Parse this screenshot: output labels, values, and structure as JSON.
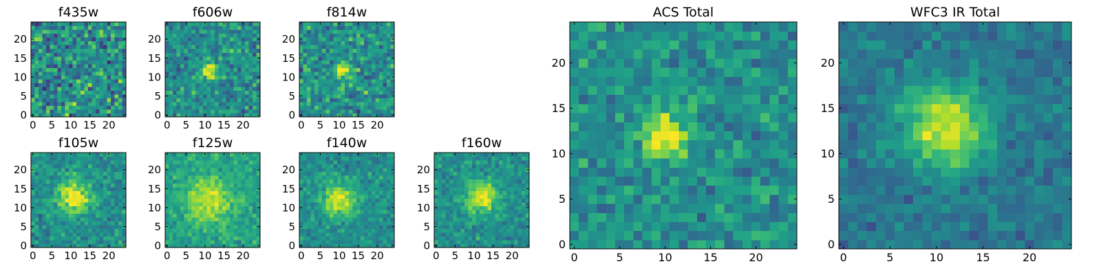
{
  "chart_data": [
    {
      "type": "heatmap",
      "title": "f435w",
      "xticks": [
        "0",
        "5",
        "10",
        "15",
        "20"
      ],
      "yticks": [
        "0",
        "5",
        "10",
        "15",
        "20"
      ],
      "xlim": [
        -0.5,
        24.5
      ],
      "ylim": [
        -0.5,
        24.5
      ],
      "grid": false,
      "blob": {
        "x": 12,
        "y": 12,
        "sigma": 3.0,
        "amp": 0.0
      },
      "noise": 0.46,
      "seed": 3
    },
    {
      "type": "heatmap",
      "title": "f606w",
      "xticks": [
        "0",
        "5",
        "10",
        "15",
        "20"
      ],
      "yticks": [
        "0",
        "5",
        "10",
        "15",
        "20"
      ],
      "xlim": [
        -0.5,
        24.5
      ],
      "ylim": [
        -0.5,
        24.5
      ],
      "grid": false,
      "blob": {
        "x": 11,
        "y": 12,
        "sigma": 1.6,
        "amp": 0.45
      },
      "noise": 0.34,
      "seed": 7
    },
    {
      "type": "heatmap",
      "title": "f814w",
      "xticks": [
        "0",
        "5",
        "10",
        "15",
        "20"
      ],
      "yticks": [
        "0",
        "5",
        "10",
        "15",
        "20"
      ],
      "xlim": [
        -0.5,
        24.5
      ],
      "ylim": [
        -0.5,
        24.5
      ],
      "grid": false,
      "blob": {
        "x": 11,
        "y": 12,
        "sigma": 1.6,
        "amp": 0.45
      },
      "noise": 0.36,
      "seed": 11
    },
    {
      "type": "heatmap",
      "title": "f105w",
      "xticks": [
        "0",
        "5",
        "10",
        "15",
        "20"
      ],
      "yticks": [
        "0",
        "5",
        "10",
        "15",
        "20"
      ],
      "xlim": [
        -0.5,
        24.5
      ],
      "ylim": [
        -0.5,
        24.5
      ],
      "grid": false,
      "blob": {
        "x": 11,
        "y": 13,
        "sigma": 3.0,
        "amp": 0.5
      },
      "noise": 0.24,
      "seed": 13
    },
    {
      "type": "heatmap",
      "title": "f125w",
      "xticks": [
        "0",
        "5",
        "10",
        "15",
        "20"
      ],
      "yticks": [
        "0",
        "5",
        "10",
        "15",
        "20"
      ],
      "xlim": [
        -0.5,
        24.5
      ],
      "ylim": [
        -0.5,
        24.5
      ],
      "grid": false,
      "blob": {
        "x": 11,
        "y": 12,
        "sigma": 4.0,
        "amp": 0.35
      },
      "noise": 0.2,
      "base": 0.58,
      "seed": 17
    },
    {
      "type": "heatmap",
      "title": "f140w",
      "xticks": [
        "0",
        "5",
        "10",
        "15",
        "20"
      ],
      "yticks": [
        "0",
        "5",
        "10",
        "15",
        "20"
      ],
      "xlim": [
        -0.5,
        24.5
      ],
      "ylim": [
        -0.5,
        24.5
      ],
      "grid": false,
      "blob": {
        "x": 10,
        "y": 12,
        "sigma": 3.0,
        "amp": 0.45
      },
      "noise": 0.22,
      "seed": 19
    },
    {
      "type": "heatmap",
      "title": "f160w",
      "xticks": [
        "0",
        "5",
        "10",
        "15",
        "20"
      ],
      "yticks": [
        "0",
        "5",
        "10",
        "15",
        "20"
      ],
      "xlim": [
        -0.5,
        24.5
      ],
      "ylim": [
        -0.5,
        24.5
      ],
      "grid": false,
      "blob": {
        "x": 12,
        "y": 13,
        "sigma": 3.0,
        "amp": 0.45
      },
      "noise": 0.22,
      "seed": 23
    },
    {
      "type": "heatmap",
      "title": "ACS Total",
      "xticks": [
        "0",
        "5",
        "10",
        "15",
        "20"
      ],
      "yticks": [
        "0",
        "5",
        "10",
        "15",
        "20"
      ],
      "xlim": [
        -0.5,
        24.5
      ],
      "ylim": [
        -0.5,
        24.5
      ],
      "grid": false,
      "blob": {
        "x": 10,
        "y": 12,
        "sigma": 1.8,
        "amp": 0.5
      },
      "noise": 0.26,
      "seed": 29
    },
    {
      "type": "heatmap",
      "title": "WFC3 IR Total",
      "xticks": [
        "0",
        "5",
        "10",
        "15",
        "20"
      ],
      "yticks": [
        "0",
        "5",
        "10",
        "15",
        "20"
      ],
      "xlim": [
        -0.5,
        24.5
      ],
      "ylim": [
        -0.5,
        24.5
      ],
      "grid": false,
      "blob": {
        "x": 11,
        "y": 13,
        "sigma": 3.2,
        "amp": 0.55
      },
      "noise": 0.18,
      "base": 0.4,
      "seed": 31
    }
  ],
  "colormap": [
    "#440154",
    "#482878",
    "#3e4989",
    "#31688e",
    "#26828e",
    "#1f9e89",
    "#35b779",
    "#6ece58",
    "#b5de2b",
    "#fde725"
  ]
}
